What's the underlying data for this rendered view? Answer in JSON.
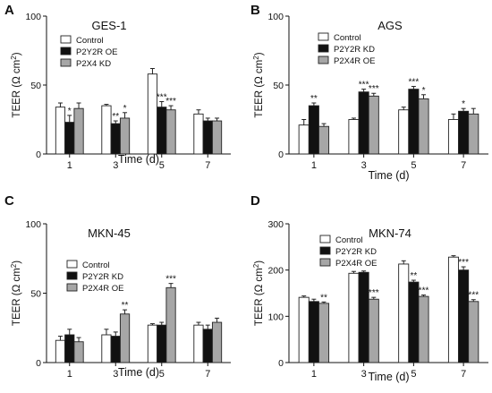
{
  "chart_data": [
    {
      "panel_label": "A",
      "type": "bar",
      "title": "GES-1",
      "xlabel": "Time (d)",
      "ylabel": "TEER (Ω cm²)",
      "ylabel_parts": {
        "pre": "TEER (",
        "omega": "Ω",
        "mid": " cm",
        "sup": "2",
        "post": ")"
      },
      "ylim": [
        0,
        100
      ],
      "yticks": [
        "0",
        "50",
        "100"
      ],
      "categories": [
        "1",
        "3",
        "5",
        "7"
      ],
      "legend_position": "upper-left",
      "series": [
        {
          "name": "Control",
          "color": "#ffffff",
          "values": [
            34,
            35,
            58,
            29
          ],
          "errors": [
            3,
            1,
            4,
            3
          ],
          "stars": [
            "",
            "",
            "",
            ""
          ]
        },
        {
          "name": "P2Y2R OE",
          "color": "#111111",
          "values": [
            23,
            22,
            34,
            24
          ],
          "errors": [
            5,
            2,
            4,
            2
          ],
          "stars": [
            "*",
            "**",
            "***",
            ""
          ]
        },
        {
          "name": "P2X4 KD",
          "color": "#a6a6a6",
          "values": [
            33,
            26,
            32,
            24
          ],
          "errors": [
            4,
            4,
            3,
            2
          ],
          "stars": [
            "",
            "*",
            "***",
            ""
          ]
        }
      ]
    },
    {
      "panel_label": "B",
      "type": "bar",
      "title": "AGS",
      "xlabel": "Time (d)",
      "ylabel": "TEER (Ω cm²)",
      "ylabel_parts": {
        "pre": "TEER (",
        "omega": "Ω",
        "mid": " cm",
        "sup": "2",
        "post": ")"
      },
      "ylim": [
        0,
        100
      ],
      "yticks": [
        "0",
        "50",
        "100"
      ],
      "categories": [
        "1",
        "3",
        "5",
        "7"
      ],
      "legend_position": "upper-left",
      "series": [
        {
          "name": "Control",
          "color": "#ffffff",
          "values": [
            21,
            25,
            32,
            25
          ],
          "errors": [
            4,
            1,
            2,
            4
          ],
          "stars": [
            "",
            "",
            "",
            ""
          ]
        },
        {
          "name": "P2Y2R  KD",
          "color": "#111111",
          "values": [
            35,
            45,
            47,
            31
          ],
          "errors": [
            2,
            2,
            2,
            2
          ],
          "stars": [
            "**",
            "***",
            "***",
            "*"
          ]
        },
        {
          "name": "P2X4R OE",
          "color": "#a6a6a6",
          "values": [
            20,
            42,
            40,
            29
          ],
          "errors": [
            2,
            2,
            3,
            4
          ],
          "stars": [
            "",
            "***",
            "*",
            ""
          ]
        }
      ]
    },
    {
      "panel_label": "C",
      "type": "bar",
      "title": "MKN-45",
      "xlabel": "Time (d)",
      "ylabel": "TEER (Ω cm²)",
      "ylabel_parts": {
        "pre": "TEER (",
        "omega": "Ω",
        "mid": " cm",
        "sup": "2",
        "post": ")"
      },
      "ylim": [
        0,
        100
      ],
      "yticks": [
        "0",
        "50",
        "100"
      ],
      "categories": [
        "1",
        "3",
        "5",
        "7"
      ],
      "legend_position": "upper-left",
      "series": [
        {
          "name": "Control",
          "color": "#ffffff",
          "values": [
            16,
            20,
            27,
            27
          ],
          "errors": [
            3,
            4,
            1,
            2
          ],
          "stars": [
            "",
            "",
            "",
            ""
          ]
        },
        {
          "name": "P2Y2R KD",
          "color": "#111111",
          "values": [
            20,
            19,
            27,
            24
          ],
          "errors": [
            4,
            3,
            2,
            3
          ],
          "stars": [
            "",
            "",
            "",
            ""
          ]
        },
        {
          "name": "P2X4R OE",
          "color": "#a6a6a6",
          "values": [
            15,
            35,
            54,
            29
          ],
          "errors": [
            3,
            3,
            3,
            3
          ],
          "stars": [
            "",
            "**",
            "***",
            ""
          ]
        }
      ]
    },
    {
      "panel_label": "D",
      "type": "bar",
      "title": "MKN-74",
      "xlabel": "Time (d)",
      "ylabel": "TEER (Ω cm²)",
      "ylabel_parts": {
        "pre": "TEER (",
        "omega": "Ω",
        "mid": " cm",
        "sup": "2",
        "post": ")"
      },
      "ylim": [
        0,
        300
      ],
      "yticks": [
        "0",
        "100",
        "200",
        "300"
      ],
      "categories": [
        "1",
        "3",
        "5",
        "7"
      ],
      "legend_position": "upper-left",
      "series": [
        {
          "name": "Control",
          "color": "#ffffff",
          "values": [
            141,
            193,
            213,
            228
          ],
          "errors": [
            3,
            4,
            7,
            3
          ],
          "stars": [
            "",
            "",
            "",
            ""
          ]
        },
        {
          "name": "P2Y2R KD",
          "color": "#111111",
          "values": [
            132,
            195,
            174,
            200
          ],
          "errors": [
            5,
            3,
            4,
            7
          ],
          "stars": [
            "",
            "",
            "**",
            "***"
          ]
        },
        {
          "name": "P2X4R OE",
          "color": "#a6a6a6",
          "values": [
            128,
            137,
            143,
            132
          ],
          "errors": [
            3,
            4,
            3,
            4
          ],
          "stars": [
            "**",
            "***",
            "***",
            "***"
          ]
        }
      ]
    }
  ]
}
